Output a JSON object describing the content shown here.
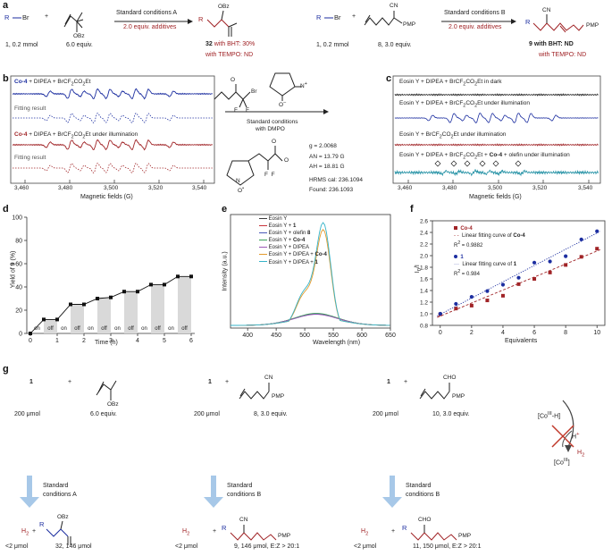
{
  "panels": {
    "a": {
      "label": "a",
      "r1": "R",
      "br": "Br",
      "obz": "OBz",
      "r1_amount": "1, 0.2 mmol",
      "olefin_amount": "6.0 equiv.",
      "cond_a": "Standard conditions A",
      "additives_a": "2.0 equiv. additives",
      "prod32_label": "32",
      "prod32_bht": "with BHT: 30%",
      "prod32_tempo": "with TEMPO: ND",
      "r1b_amount": "1, 0.2 mmol",
      "cn": "CN",
      "pmp": "PMP",
      "sub8_amount": "8, 3.0 equiv.",
      "cond_b": "Standard conditions B",
      "additives_b": "2.0 equiv. additives",
      "prod9_bht": "9 with BHT: ND",
      "prod9_tempo": "with TEMPO: ND"
    },
    "b": {
      "label": "b",
      "legend1": "Co-4 + DIPEA + BrCF2CO2Et",
      "fit1": "Fitting result",
      "legend2": "Co-4 + DIPEA + BrCF2CO2Et under illumination",
      "fit2": "Fitting result",
      "xlabel": "Magnetic fields (G)",
      "ticks": [
        "3,460",
        "3,480",
        "3,500",
        "3,520",
        "3,540"
      ],
      "cond": "Standard conditions",
      "with_dmpo": "with DMPO",
      "g": "g = 2.0068",
      "an": "AN = 13.79 G",
      "ah": "AH = 18.81 G",
      "hrms": "HRMS cal: 236.1094",
      "found": "Found: 236.1093"
    },
    "c": {
      "label": "c",
      "l1": "Eosin Y + DIPEA + BrCF2CO2Et in dark",
      "l2": "Eosin Y + DIPEA + BrCF2CO2Et under illumination",
      "l3": "Eosin Y + BrCF2CO2Et under illumination",
      "l4": "Eosin Y + DIPEA + BrCF2CO2Et + Co-4 + olefin under illumination",
      "xlabel": "Magnetic fields (G)",
      "ticks": [
        "3,460",
        "3,480",
        "3,500",
        "3,520",
        "3,540"
      ]
    },
    "d": {
      "label": "d",
      "ylabel": "Yield of 9 (%)",
      "xlabel": "Time (h)",
      "on": "on",
      "off": "off"
    },
    "e": {
      "label": "e",
      "ylabel": "Intensity (a.u.)",
      "xlabel": "Wavelength (nm)",
      "legend": [
        "Eosin Y",
        "Eosin Y + 1",
        "Eosin Y + olefin 8",
        "Eosin Y + Co-4",
        "Eosin Y + DIPEA",
        "Eosin Y + DIPEA + Co-4",
        "Eosin Y + DIPEA + 1"
      ]
    },
    "f": {
      "label": "f",
      "ylabel": "I0/I",
      "xlabel": "Equivalents",
      "leg_co4": "Co-4",
      "leg_co4_fit": "Linear fitting curve of Co-4",
      "r2_co4": "R2 = 0.9882",
      "leg_1": "1",
      "leg_1_fit": "Linear fitting curve of 1",
      "r2_1": "R2 = 0.984"
    },
    "g": {
      "label": "g",
      "one": "1",
      "plus": "+",
      "amt200": "200  μmol",
      "olefin_amt": "6.0 equiv.",
      "sub8": "8, 3.0 equiv.",
      "sub10": "10, 3.0 equiv.",
      "cond_a1": "Standard",
      "cond_a2": "conditions A",
      "cond_b1": "Standard",
      "cond_b2": "conditions B",
      "h2": "H2",
      "lt2": "<2  μmol",
      "p32": "32, 146 μmol",
      "p9": "9, 146 μmol, E:Z > 20:1",
      "p11": "11, 150 μmol, E:Z > 20:1",
      "coh": "[CoIII-H]",
      "coiii": "[CoIII]",
      "hplus": "H+",
      "cho": "CHO"
    }
  },
  "chart_data": [
    {
      "type": "bar",
      "title": "d",
      "categories": [
        "0-0.5",
        "0.5-1",
        "1-1.5",
        "1.5-2",
        "2-2.5",
        "2.5-3",
        "3-3.5",
        "3.5-4",
        "4-4.5",
        "4.5-5",
        "5-5.5",
        "5.5-6"
      ],
      "light": [
        "on",
        "off",
        "on",
        "off",
        "on",
        "off",
        "on",
        "off",
        "on",
        "off",
        "on",
        "off"
      ],
      "x": [
        0,
        0.5,
        1,
        1.5,
        2,
        2.5,
        3,
        3.5,
        4,
        4.5,
        5,
        5.5,
        6
      ],
      "values": [
        0,
        12,
        12,
        25,
        25,
        30,
        31,
        36,
        36,
        42,
        42,
        49,
        49
      ],
      "xlabel": "Time (h)",
      "ylabel": "Yield of 9 (%)",
      "ylim": [
        0,
        100
      ],
      "yticks": [
        0,
        20,
        40,
        60,
        80,
        100
      ],
      "xticks": [
        0,
        1,
        2,
        3,
        4,
        5,
        6
      ]
    },
    {
      "type": "line",
      "title": "e",
      "xlabel": "Wavelength (nm)",
      "ylabel": "Intensity (a.u.)",
      "xlim": [
        370,
        650
      ],
      "xticks": [
        400,
        450,
        500,
        550,
        600,
        650
      ],
      "series": [
        {
          "name": "Eosin Y",
          "color": "#3a3a3a",
          "peak": 0.09
        },
        {
          "name": "Eosin Y + 1",
          "color": "#c8343b",
          "peak": 0.085
        },
        {
          "name": "Eosin Y + olefin 8",
          "color": "#4a59b8",
          "peak": 0.08
        },
        {
          "name": "Eosin Y + Co-4",
          "color": "#3aa15a",
          "peak": 0.1
        },
        {
          "name": "Eosin Y + DIPEA",
          "color": "#9b59b6",
          "peak": 0.075
        },
        {
          "name": "Eosin Y + DIPEA + Co-4",
          "color": "#e39a2c",
          "peak": 0.71
        },
        {
          "name": "Eosin Y + DIPEA + 1",
          "color": "#36b3c8",
          "peak": 0.76
        }
      ]
    },
    {
      "type": "scatter",
      "title": "f",
      "xlabel": "Equivalents",
      "ylabel": "I0/I",
      "xlim": [
        -0.5,
        10.5
      ],
      "ylim": [
        0.8,
        2.6
      ],
      "xticks": [
        0,
        2,
        4,
        6,
        8,
        10
      ],
      "yticks": [
        0.8,
        1.0,
        1.2,
        1.4,
        1.6,
        1.8,
        2.0,
        2.2,
        2.4,
        2.6
      ],
      "series": [
        {
          "name": "Co-4",
          "color": "#a02326",
          "x": [
            0,
            1,
            2,
            3,
            4,
            5,
            6,
            7,
            8,
            9,
            10
          ],
          "y": [
            0.99,
            1.09,
            1.14,
            1.23,
            1.31,
            1.51,
            1.6,
            1.71,
            1.84,
            1.98,
            2.12
          ],
          "fit": [
            0.96,
            0.112
          ]
        },
        {
          "name": "1",
          "color": "#1c2ea0",
          "x": [
            0,
            1,
            2,
            3,
            4,
            5,
            6,
            7,
            8,
            9,
            10
          ],
          "y": [
            1.0,
            1.17,
            1.29,
            1.39,
            1.5,
            1.62,
            1.88,
            1.9,
            1.99,
            2.28,
            2.42
          ],
          "fit": [
            0.99,
            0.14
          ]
        }
      ]
    }
  ]
}
